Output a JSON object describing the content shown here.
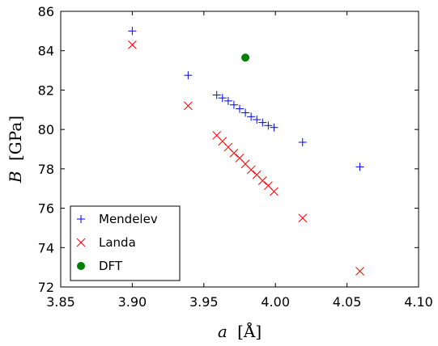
{
  "chart_data": {
    "type": "scatter",
    "xlabel_var": "a",
    "xlabel_unit": "[Å]",
    "ylabel_var": "B",
    "ylabel_unit": "[GPa]",
    "xlim": [
      3.85,
      4.1
    ],
    "ylim": [
      72,
      86
    ],
    "xticks": [
      3.85,
      3.9,
      3.95,
      4.0,
      4.05,
      4.1
    ],
    "yticks": [
      72,
      74,
      76,
      78,
      80,
      82,
      84,
      86
    ],
    "xtick_labels": [
      "3.85",
      "3.90",
      "3.95",
      "4.00",
      "4.05",
      "4.10"
    ],
    "ytick_labels": [
      "72",
      "74",
      "76",
      "78",
      "80",
      "82",
      "84",
      "86"
    ],
    "grid": false,
    "legend_position": "bottom-left",
    "series": [
      {
        "name": "Mendelev",
        "marker": "plus",
        "color": "#0000ff",
        "x": [
          3.9,
          3.939,
          3.959,
          3.963,
          3.967,
          3.971,
          3.975,
          3.979,
          3.983,
          3.987,
          3.991,
          3.995,
          3.999,
          4.019,
          4.059
        ],
        "y": [
          85.0,
          82.75,
          81.75,
          81.6,
          81.45,
          81.25,
          81.05,
          80.85,
          80.65,
          80.5,
          80.35,
          80.2,
          80.1,
          79.35,
          78.1
        ]
      },
      {
        "name": "Landa",
        "marker": "x",
        "color": "#ff0000",
        "x": [
          3.9,
          3.939,
          3.959,
          3.963,
          3.967,
          3.971,
          3.975,
          3.979,
          3.983,
          3.987,
          3.991,
          3.995,
          3.999,
          4.019,
          4.059
        ],
        "y": [
          84.3,
          81.2,
          79.7,
          79.4,
          79.1,
          78.8,
          78.55,
          78.25,
          77.95,
          77.7,
          77.4,
          77.15,
          76.85,
          75.5,
          72.8
        ]
      },
      {
        "name": "DFT",
        "marker": "circle",
        "color": "#008000",
        "x": [
          3.979
        ],
        "y": [
          83.65
        ]
      }
    ]
  }
}
